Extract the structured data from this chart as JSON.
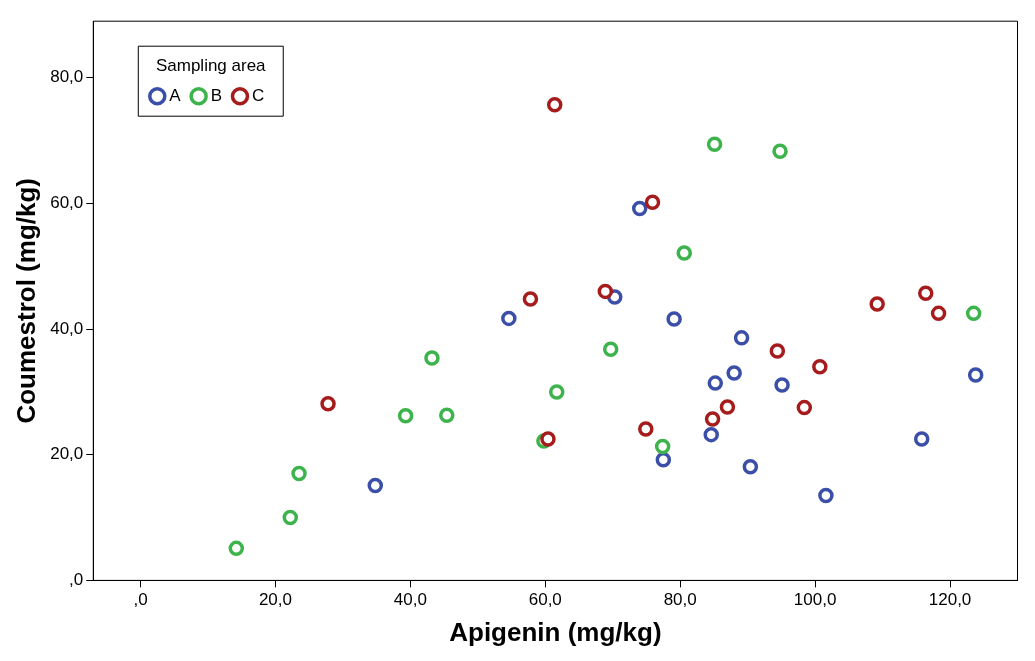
{
  "chart_data": {
    "type": "scatter",
    "xlabel": "Apigenin (mg/kg)",
    "ylabel": "Coumestrol (mg/kg)",
    "legend_title": "Sampling area",
    "legend": "top left",
    "grid": false,
    "marker": "circle",
    "xlim": [
      -7,
      130
    ],
    "ylim": [
      0,
      89
    ],
    "xticks": [
      {
        "value": 0,
        "label": ",0"
      },
      {
        "value": 20,
        "label": "20,0"
      },
      {
        "value": 40,
        "label": "40,0"
      },
      {
        "value": 60,
        "label": "60,0"
      },
      {
        "value": 80,
        "label": "80,0"
      },
      {
        "value": 100,
        "label": "100,0"
      },
      {
        "value": 120,
        "label": "120,0"
      }
    ],
    "yticks": [
      {
        "value": 0,
        "label": ",0"
      },
      {
        "value": 20,
        "label": "20,0"
      },
      {
        "value": 40,
        "label": "40,0"
      },
      {
        "value": 60,
        "label": "60,0"
      },
      {
        "value": 80,
        "label": "80,0"
      }
    ],
    "series": [
      {
        "name": "A",
        "color": "#3b4ea8",
        "x": [
          34.8,
          54.6,
          74.0,
          70.3,
          79.1,
          89.1,
          88.0,
          85.2,
          95.1,
          77.5,
          84.6,
          90.4,
          101.6,
          115.8,
          123.8
        ],
        "values": [
          15.1,
          41.7,
          59.2,
          45.1,
          41.6,
          38.6,
          33.0,
          31.4,
          31.1,
          19.2,
          23.2,
          18.1,
          13.5,
          22.5,
          32.7
        ]
      },
      {
        "name": "B",
        "color": "#3cb44b",
        "x": [
          14.2,
          22.2,
          23.5,
          39.3,
          43.2,
          45.4,
          59.8,
          61.7,
          69.7,
          77.4,
          80.6,
          85.1,
          94.8,
          123.5
        ],
        "values": [
          5.1,
          10.0,
          17.0,
          26.2,
          35.4,
          26.3,
          22.2,
          30.0,
          36.8,
          21.3,
          52.1,
          69.4,
          68.3,
          42.5
        ]
      },
      {
        "name": "C",
        "color": "#a61c1c",
        "x": [
          27.8,
          57.8,
          60.4,
          61.4,
          68.9,
          75.9,
          74.9,
          84.8,
          87.0,
          94.4,
          98.4,
          100.7,
          109.2,
          116.4,
          118.3
        ],
        "values": [
          28.1,
          44.8,
          22.5,
          75.7,
          46.0,
          60.2,
          24.1,
          25.7,
          27.6,
          36.5,
          27.5,
          34.0,
          44.0,
          45.7,
          42.5
        ]
      }
    ]
  }
}
